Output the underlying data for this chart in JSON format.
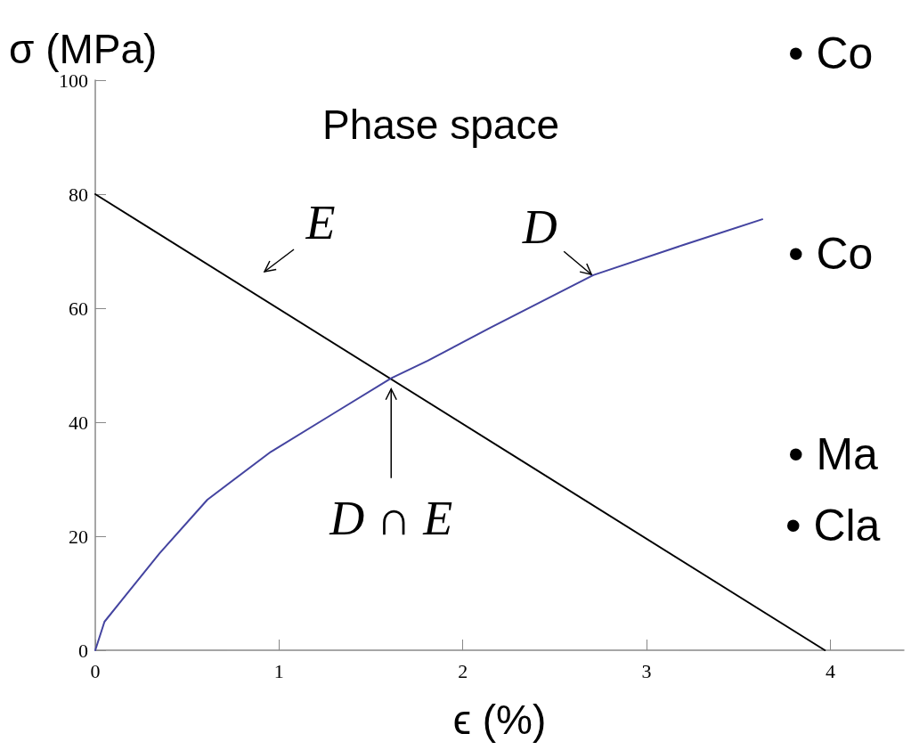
{
  "chart_data": {
    "type": "line",
    "xlabel": "ϵ (%)",
    "ylabel": "σ (MPa)",
    "xlim": [
      0,
      4.4
    ],
    "xticks": [
      0,
      1,
      2,
      3,
      4
    ],
    "ylim": [
      0,
      100
    ],
    "yticks": [
      0,
      20,
      40,
      60,
      80,
      100
    ],
    "grid": false,
    "marker": "none",
    "line_style": "solid",
    "series": [
      {
        "color": "#000000",
        "x": [
          0,
          3.97
        ],
        "values": [
          80,
          0
        ]
      },
      {
        "color": "#4444a0",
        "x": [
          0,
          0.05,
          0.14,
          0.35,
          0.61,
          0.955,
          1.3,
          1.61,
          1.81,
          2.15,
          2.71,
          3.2,
          3.63
        ],
        "values": [
          0,
          5,
          8.6,
          17,
          26.4,
          34.8,
          41.6,
          47.7,
          50.8,
          56.6,
          65.8,
          71.1,
          75.6
        ]
      }
    ],
    "annotations": [
      "Phase space",
      "E",
      {
        "text": "D",
        "x": 2.7,
        "y": 65.9
      },
      {
        "text": "D ∩ E",
        "x": 1.61,
        "y": 47.7
      },
      "• Co",
      "• Co",
      "• Ma",
      "• Cla"
    ]
  }
}
